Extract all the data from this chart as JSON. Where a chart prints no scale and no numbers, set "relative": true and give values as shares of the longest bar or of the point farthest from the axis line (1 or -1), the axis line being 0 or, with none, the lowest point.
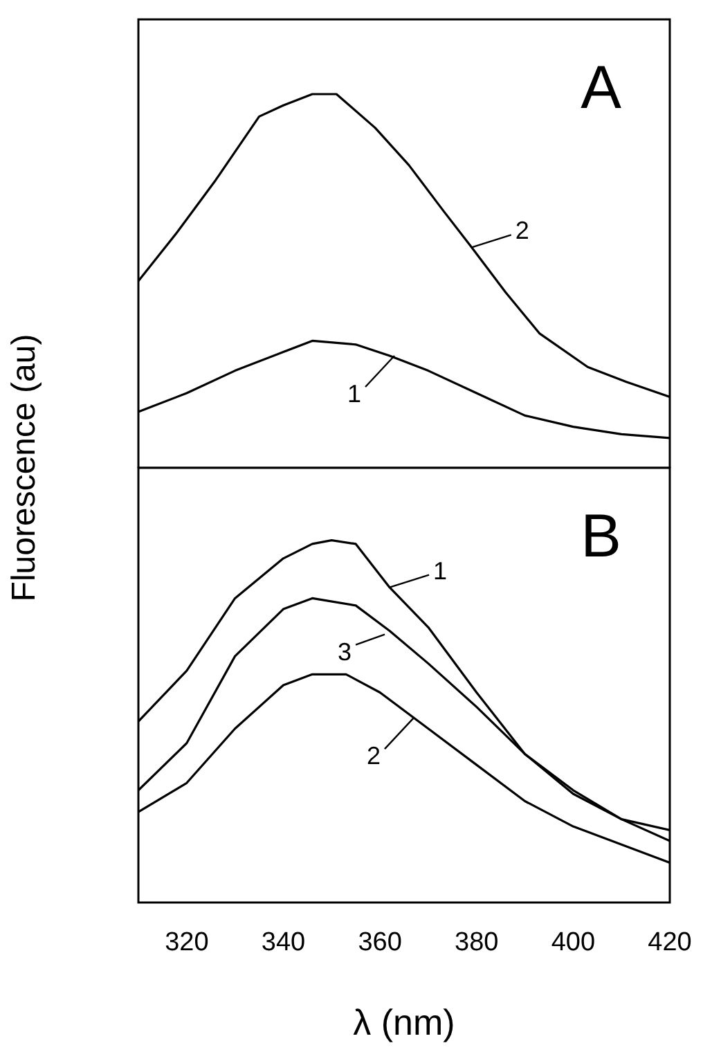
{
  "chart_data": [
    {
      "type": "line",
      "title": "A",
      "ylabel": "Fluorescence (au)",
      "relative": true,
      "xlim": [
        310,
        420
      ],
      "xticks": [
        320,
        340,
        360,
        380,
        400,
        420
      ],
      "tick_labels": false,
      "grid": false,
      "legend": false,
      "marker": "none",
      "line_style": "solid",
      "series": [
        {
          "color": "#000000",
          "x": [
            310,
            320,
            330,
            340,
            346,
            355,
            362,
            370,
            380,
            390,
            400,
            410,
            420
          ],
          "values": [
            0.15,
            0.2,
            0.26,
            0.31,
            0.34,
            0.33,
            0.3,
            0.26,
            0.2,
            0.14,
            0.11,
            0.09,
            0.08
          ]
        },
        {
          "color": "#000000",
          "x": [
            310,
            318,
            326,
            335,
            340,
            346,
            351,
            359,
            366,
            373,
            379,
            386,
            393,
            403,
            411,
            420
          ],
          "values": [
            0.5,
            0.63,
            0.77,
            0.94,
            0.97,
            1,
            1,
            0.91,
            0.81,
            0.69,
            0.59,
            0.47,
            0.36,
            0.27,
            0.23,
            0.19
          ]
        }
      ],
      "annotations": [
        {
          "text": "1",
          "x": 363,
          "y": 0.3
        },
        {
          "text": "2",
          "x": 379,
          "y": 0.59
        }
      ]
    },
    {
      "type": "line",
      "title": "B",
      "xlabel": "λ (nm)",
      "relative": true,
      "xlim": [
        310,
        420
      ],
      "xticks": [
        320,
        340,
        360,
        380,
        400,
        420
      ],
      "tick_labels": "x",
      "grid": false,
      "legend": false,
      "marker": "none",
      "line_style": "solid",
      "series": [
        {
          "color": "#000000",
          "x": [
            310,
            320,
            330,
            340,
            346,
            350,
            355,
            362,
            370,
            380,
            390,
            400,
            410,
            420
          ],
          "values": [
            0.5,
            0.64,
            0.84,
            0.95,
            0.99,
            1,
            0.99,
            0.87,
            0.76,
            0.58,
            0.41,
            0.3,
            0.23,
            0.17
          ]
        },
        {
          "color": "#000000",
          "x": [
            310,
            320,
            330,
            340,
            346,
            353,
            360,
            370,
            380,
            390,
            400,
            410,
            420
          ],
          "values": [
            0.25,
            0.33,
            0.48,
            0.6,
            0.63,
            0.63,
            0.58,
            0.48,
            0.38,
            0.28,
            0.21,
            0.16,
            0.11
          ]
        },
        {
          "color": "#000000",
          "x": [
            310,
            320,
            330,
            340,
            346,
            355,
            362,
            370,
            380,
            390,
            400,
            410,
            420
          ],
          "values": [
            0.31,
            0.44,
            0.68,
            0.81,
            0.84,
            0.82,
            0.75,
            0.66,
            0.54,
            0.41,
            0.31,
            0.23,
            0.2
          ]
        }
      ],
      "annotations": [
        {
          "text": "1",
          "x": 362,
          "y": 0.87
        },
        {
          "text": "2",
          "x": 367,
          "y": 0.51
        },
        {
          "text": "3",
          "x": 361,
          "y": 0.74
        }
      ]
    }
  ]
}
